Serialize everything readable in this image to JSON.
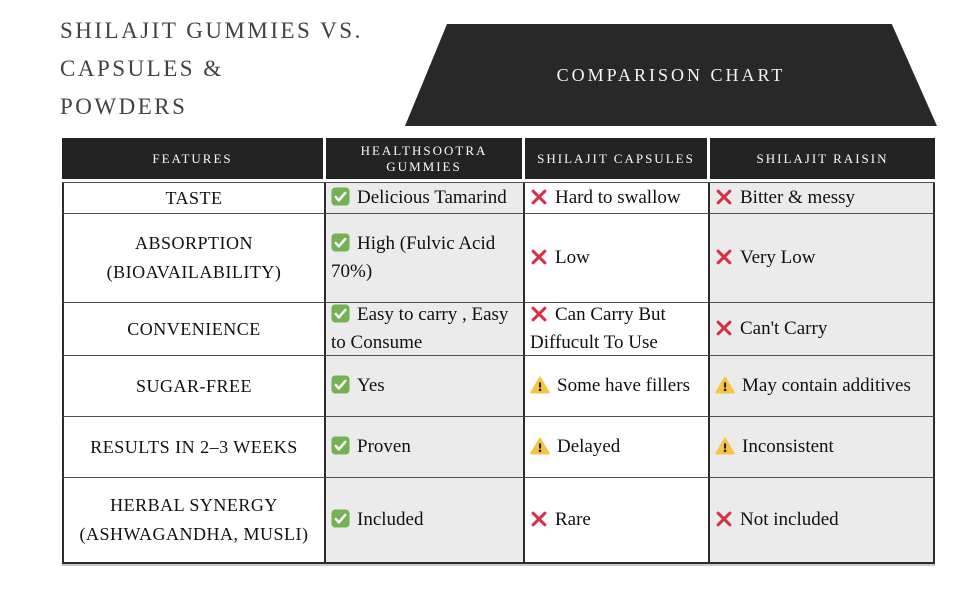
{
  "title_lines": [
    "SHILAJIT GUMMIES VS.",
    "CAPSULES &",
    "POWDERS"
  ],
  "banner_label": "COMPARISON CHART",
  "colors": {
    "title_color": "#424242",
    "banner_bg": "#282828",
    "header_bg": "#232323",
    "stripe_bg": "#ebebeb",
    "line_v": "#2c2c2c",
    "line_h": "#4f4f4f",
    "check_green": "#74b153",
    "cross_red": "#d92f46",
    "warn_yellow": "#f6c443"
  },
  "icon_names": {
    "check": "check-icon",
    "cross": "cross-icon",
    "warn": "warning-icon"
  },
  "chart_data": {
    "type": "table",
    "title": "Shilajit Gummies vs. Capsules & Powders — Comparison Chart",
    "columns": [
      "FEATURES",
      "HEALTHSOOTRA GUMMIES",
      "SHILAJIT CAPSULES",
      "SHILAJIT RAISIN"
    ],
    "rows": [
      {
        "feature": "TASTE",
        "cells": [
          {
            "status": "check",
            "text": "Delicious Tamarind"
          },
          {
            "status": "cross",
            "text": "Hard to swallow"
          },
          {
            "status": "cross",
            "text": "Bitter & messy"
          }
        ]
      },
      {
        "feature": "ABSORPTION (BIOAVAILABILITY)",
        "cells": [
          {
            "status": "check",
            "text": "High (Fulvic Acid 70%)"
          },
          {
            "status": "cross",
            "text": "Low"
          },
          {
            "status": "cross",
            "text": "Very Low"
          }
        ]
      },
      {
        "feature": "CONVENIENCE",
        "cells": [
          {
            "status": "check",
            "text": "Easy to carry , Easy to Consume"
          },
          {
            "status": "cross",
            "text": "Can Carry But Diffucult To Use"
          },
          {
            "status": "cross",
            "text": "Can't Carry"
          }
        ]
      },
      {
        "feature": "SUGAR-FREE",
        "cells": [
          {
            "status": "check",
            "text": "Yes"
          },
          {
            "status": "warn",
            "text": "Some have fillers"
          },
          {
            "status": "warn",
            "text": "May contain additives"
          }
        ]
      },
      {
        "feature": "RESULTS IN 2–3 WEEKS",
        "cells": [
          {
            "status": "check",
            "text": "Proven"
          },
          {
            "status": "warn",
            "text": "Delayed"
          },
          {
            "status": "warn",
            "text": "Inconsistent"
          }
        ]
      },
      {
        "feature": "HERBAL SYNERGY (ASHWAGANDHA, MUSLI)",
        "cells": [
          {
            "status": "check",
            "text": "Included"
          },
          {
            "status": "cross",
            "text": "Rare"
          },
          {
            "status": "cross",
            "text": "Not included"
          }
        ]
      }
    ]
  }
}
